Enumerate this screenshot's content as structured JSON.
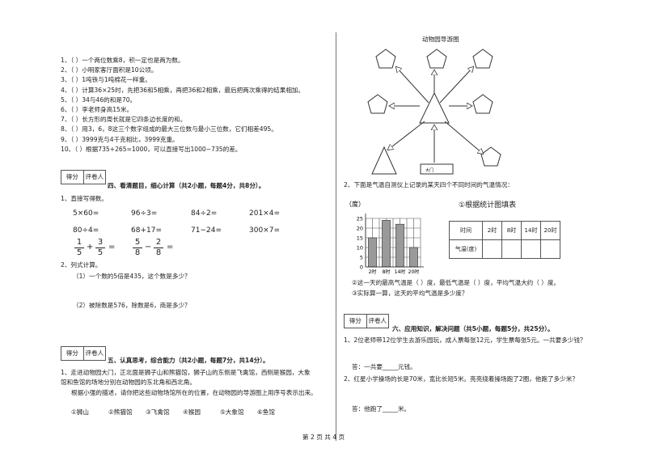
{
  "judgement": [
    "1、（   ）一个两位数乘8，积一定也是两为数。",
    "2、（   ）小明家客厅面积是10公顷。",
    "3、（   ）1吨铁与1吨棉花一样重。",
    "4、（   ）计算36×25时，先把36和5相乘，再把36和2相乘，最后把两次乘得的结果相加。",
    "5、（   ）34与46的和是70。",
    "6、（   ）李老师身高15米。",
    "7、（   ）长方形的周长就是它四条边长度的和。",
    "8、（   ）用3，6，8这三个数字组成的最大三位数与最小三位数，它们相差495。",
    "9、（   ）3999克与4千克相比，3999克重。",
    "10、（   ）根据735+265=1000，可以直接写出1000−735的差。"
  ],
  "score_box": [
    "得分",
    "评卷人"
  ],
  "section4": {
    "heading": "四、看清题目，细心计算（共2小题，每题4分，共8分）。",
    "q1": "1、直接写得数。",
    "calc": [
      [
        "5×60=",
        "96÷3=",
        "84÷2=",
        "201×4="
      ],
      [
        "80÷4=",
        "68+17=",
        "71−24=",
        "300×7="
      ]
    ],
    "fractions": [
      [
        "1",
        "5",
        "+",
        "3",
        "5",
        "="
      ],
      [
        "5",
        "8",
        "−",
        "2",
        "8",
        "="
      ]
    ],
    "q2": "2、列式计算。",
    "q2a": "（1）一个数的5倍是435，这个数是多少？",
    "q2b": "（2）被除数是576，除数是6，商是多少？"
  },
  "section5": {
    "heading": "五、认真思考，综合能力（共2小题，每题7分，共14分）。",
    "q1_line1": "1、走进动物园大门，正北面是狮子山和熊猫馆，狮子山的东侧是飞禽馆，西侧是猴园，大象",
    "q1_line2": "馆和鱼馆的场地分别在动物园的东北角和西北角。",
    "q1_line3": "根据小强的描述，请你把这些动物场馆所在的位置，在动物园的导游图上用序号表示出来。",
    "options": [
      "①狮山",
      "②熊猫馆",
      "③飞禽馆",
      "④猴园",
      "⑤大象馆",
      "⑥鱼馆"
    ]
  },
  "map": {
    "title": "动物园导游图",
    "gate": "大门"
  },
  "q2_intro": "2、下面是气温自测仪上记录的某天四个不同时间的气温情况：",
  "chart_data": {
    "type": "bar",
    "y_label": "（度）",
    "categories": [
      "2时",
      "8时",
      "14时",
      "20时"
    ],
    "values": [
      15,
      24,
      22,
      10
    ],
    "color": "#9a9a9a",
    "ylim": [
      0,
      25
    ],
    "yticks": [
      0,
      5,
      10,
      15,
      20,
      25
    ],
    "grid": true
  },
  "table": {
    "title": "①根据统计图填表",
    "header": [
      "时间",
      "2时",
      "8时",
      "14时",
      "20时"
    ],
    "row_label": "气温(度)"
  },
  "q2_sub2": "②这一天的最高气温是（      ）度，最低气温是（      ）度，平均气温大约（      ）度。",
  "q2_sub3": "③实际算一算，这天的平均气温是多少度？",
  "section6": {
    "heading": "六、应用知识，解决问题（共5小题，每题5分，共25分）。",
    "q1": "1、2位老师带12位学生去游乐园玩，成人票每张12元，学生票每张5元。一共要多少钱？",
    "a1": "答：一共要_____元钱。",
    "q2": "2、红星小学操场的长是70米，宽比长短5米。亮亮绕着操场跑了2圈，他跑了多少米？",
    "a2": "答：他跑了_____米。"
  },
  "footer": "第 2 页 共 4 页"
}
